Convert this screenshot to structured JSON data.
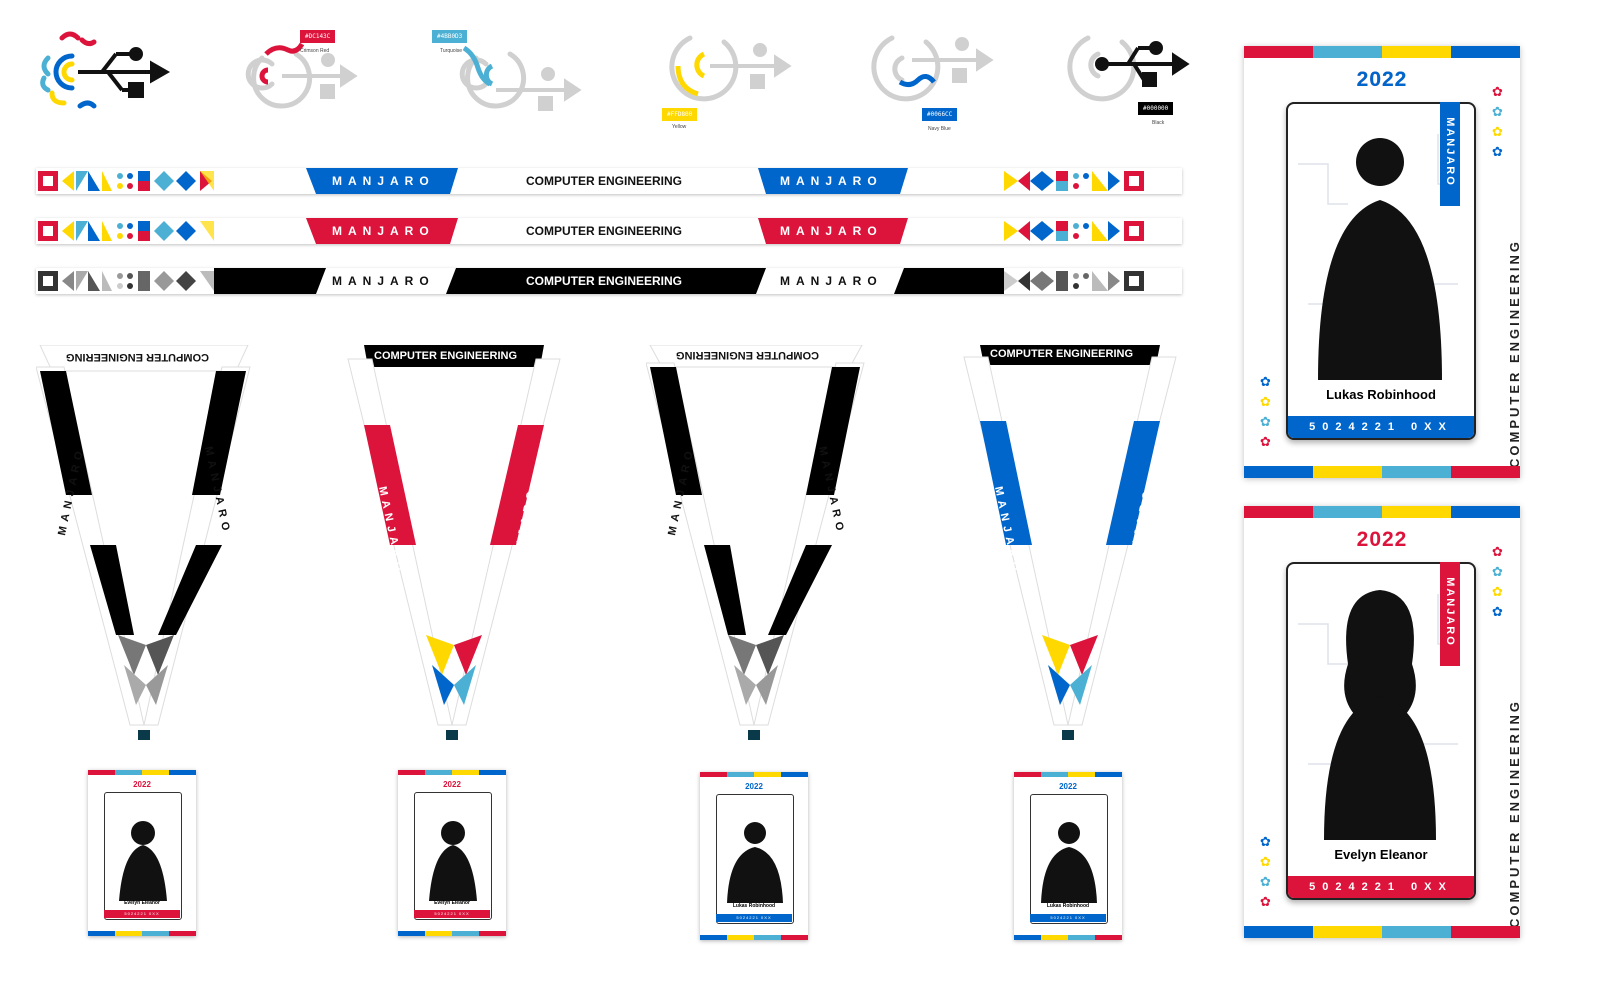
{
  "colors": {
    "crimson": "#DC143C",
    "turquoise": "#4BB0D3",
    "yellow": "#FFD800",
    "navy": "#0066CC",
    "black": "#000000",
    "grey": "#C8C8C8"
  },
  "swatches": [
    {
      "hex": "#DC143C",
      "name": "Crimson Red"
    },
    {
      "hex": "#4BB0D3",
      "name": "Turquoise"
    },
    {
      "hex": "#FFD800",
      "name": "Yellow"
    },
    {
      "hex": "#0066CC",
      "name": "Navy Blue"
    },
    {
      "hex": "#000000",
      "name": "Black"
    }
  ],
  "strap": {
    "manjaro": "MANJARO",
    "department": "COMPUTER ENGINEERING"
  },
  "lanyards": [
    {
      "title": "COMPUTER ENGINEERING",
      "label": "MANJARO"
    },
    {
      "title": "COMPUTER ENGINEERING",
      "label": "MANJARO"
    },
    {
      "title": "COMPUTER ENGINEERING",
      "label": "MANJARO"
    },
    {
      "title": "COMPUTER ENGINEERING",
      "label": "MANJARO"
    }
  ],
  "cards": [
    {
      "year": "2022",
      "name": "Lukas Robinhood",
      "id": "5024221 0XX",
      "department": "COMPUTER ENGINEERING",
      "ribbon": "MANJARO"
    },
    {
      "year": "2022",
      "name": "Evelyn Eleanor",
      "id": "5024221 0XX",
      "department": "COMPUTER ENGINEERING",
      "ribbon": "MANJARO"
    }
  ],
  "mini_cards": [
    {
      "year": "2022",
      "name": "Evelyn Eleanor",
      "id": "5024221 0XX"
    },
    {
      "year": "2022",
      "name": "Evelyn Eleanor",
      "id": "5024221 0XX"
    },
    {
      "year": "2022",
      "name": "Lukas Robinhood",
      "id": "5024221 0XX"
    },
    {
      "year": "2022",
      "name": "Lukas Robinhood",
      "id": "5024221 0XX"
    }
  ]
}
